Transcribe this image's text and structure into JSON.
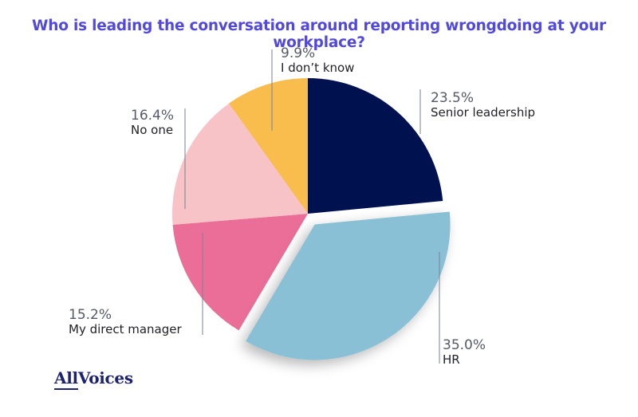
{
  "chart_data": {
    "type": "pie",
    "title": "Who is leading the conversation around reporting wrongdoing at your workplace?",
    "unit": "%",
    "exploded": "HR",
    "slices": [
      {
        "label": "Senior leadership",
        "value": 23.5,
        "display": "23.5%",
        "color": "#001150"
      },
      {
        "label": "HR",
        "value": 35.0,
        "display": "35.0%",
        "color": "#8ac0d5"
      },
      {
        "label": "My direct manager",
        "value": 15.2,
        "display": "15.2%",
        "color": "#ea6e98"
      },
      {
        "label": "No one",
        "value": 16.4,
        "display": "16.4%",
        "color": "#f7c3c7"
      },
      {
        "label": "I don’t know",
        "value": 9.9,
        "display": "9.9%",
        "color": "#f8bd4d"
      }
    ]
  },
  "colors": {
    "title": "#5148dc",
    "logo": "#1d2270",
    "leader": "#7a8296"
  },
  "logo": {
    "part1": "All",
    "part2": "Voices"
  }
}
